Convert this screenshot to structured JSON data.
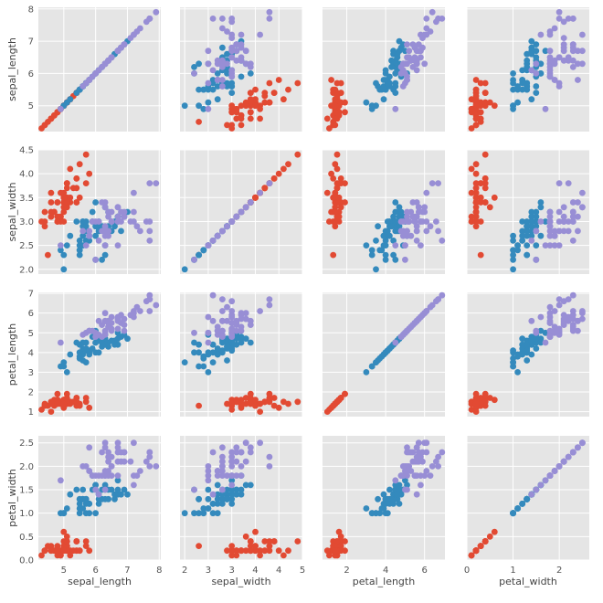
{
  "chart_data": {
    "type": "scatter",
    "style": "pairplot",
    "grid": true,
    "variables": [
      "sepal_length",
      "sepal_width",
      "petal_length",
      "petal_width"
    ],
    "groups": [
      {
        "color": "#E24A33"
      },
      {
        "color": "#348ABD"
      },
      {
        "color": "#988ED5"
      }
    ],
    "axes": {
      "sepal_length": {
        "range": [
          4.2,
          8.05
        ],
        "ticks": [
          5,
          6,
          7,
          8
        ]
      },
      "sepal_width": {
        "range": [
          1.9,
          4.5
        ],
        "ticks": [
          2.0,
          2.5,
          3.0,
          3.5,
          4.0,
          4.5
        ],
        "tick_labels": [
          "2.0",
          "2.5",
          "3.0",
          "3.5",
          "4.0",
          "4.5"
        ]
      },
      "petal_length": {
        "range": [
          0.75,
          7.05
        ],
        "ticks": [
          1,
          2,
          3,
          4,
          5,
          6,
          7
        ]
      },
      "petal_width": {
        "range": [
          0,
          2.65
        ],
        "ticks": [
          0.0,
          0.5,
          1.0,
          1.5,
          2.0,
          2.5
        ],
        "tick_labels": [
          "0.0",
          "0.5",
          "1.0",
          "1.5",
          "2.0",
          "2.5"
        ]
      }
    },
    "x_axis_ticks": {
      "petal_length": [
        2,
        4,
        6
      ],
      "petal_width": [
        0,
        1,
        2
      ]
    },
    "xlabels": [
      "sepal_length",
      "sepal_width",
      "petal_length",
      "petal_width"
    ],
    "ylabels": [
      "sepal_length",
      "sepal_width",
      "petal_length",
      "petal_width"
    ],
    "data": [
      [
        [
          5.1,
          3.5,
          1.4,
          0.2
        ],
        [
          4.9,
          3.0,
          1.4,
          0.2
        ],
        [
          4.7,
          3.2,
          1.3,
          0.2
        ],
        [
          4.6,
          3.1,
          1.5,
          0.2
        ],
        [
          5.0,
          3.6,
          1.4,
          0.2
        ],
        [
          5.4,
          3.9,
          1.7,
          0.4
        ],
        [
          4.6,
          3.4,
          1.4,
          0.3
        ],
        [
          5.0,
          3.4,
          1.5,
          0.2
        ],
        [
          4.4,
          2.9,
          1.4,
          0.2
        ],
        [
          4.9,
          3.1,
          1.5,
          0.1
        ],
        [
          5.4,
          3.7,
          1.5,
          0.2
        ],
        [
          4.8,
          3.4,
          1.6,
          0.2
        ],
        [
          4.8,
          3.0,
          1.4,
          0.1
        ],
        [
          4.3,
          3.0,
          1.1,
          0.1
        ],
        [
          5.8,
          4.0,
          1.2,
          0.2
        ],
        [
          5.7,
          4.4,
          1.5,
          0.4
        ],
        [
          5.4,
          3.9,
          1.3,
          0.4
        ],
        [
          5.1,
          3.5,
          1.4,
          0.3
        ],
        [
          5.7,
          3.8,
          1.7,
          0.3
        ],
        [
          5.1,
          3.8,
          1.5,
          0.3
        ],
        [
          5.4,
          3.4,
          1.7,
          0.2
        ],
        [
          5.1,
          3.7,
          1.5,
          0.4
        ],
        [
          4.6,
          3.6,
          1.0,
          0.2
        ],
        [
          5.1,
          3.3,
          1.7,
          0.5
        ],
        [
          4.8,
          3.4,
          1.9,
          0.2
        ],
        [
          5.0,
          3.0,
          1.6,
          0.2
        ],
        [
          5.0,
          3.4,
          1.6,
          0.4
        ],
        [
          5.2,
          3.5,
          1.5,
          0.2
        ],
        [
          5.2,
          3.4,
          1.4,
          0.2
        ],
        [
          4.7,
          3.2,
          1.6,
          0.2
        ],
        [
          4.8,
          3.1,
          1.6,
          0.2
        ],
        [
          5.4,
          3.4,
          1.5,
          0.4
        ],
        [
          5.2,
          4.1,
          1.5,
          0.1
        ],
        [
          5.5,
          4.2,
          1.4,
          0.2
        ],
        [
          4.9,
          3.1,
          1.5,
          0.2
        ],
        [
          5.0,
          3.2,
          1.2,
          0.2
        ],
        [
          5.5,
          3.5,
          1.3,
          0.2
        ],
        [
          4.9,
          3.6,
          1.4,
          0.1
        ],
        [
          4.4,
          3.0,
          1.3,
          0.2
        ],
        [
          5.1,
          3.4,
          1.5,
          0.2
        ],
        [
          5.0,
          3.5,
          1.3,
          0.3
        ],
        [
          4.5,
          2.3,
          1.3,
          0.3
        ],
        [
          4.4,
          3.2,
          1.3,
          0.2
        ],
        [
          5.0,
          3.5,
          1.6,
          0.6
        ],
        [
          5.1,
          3.8,
          1.9,
          0.4
        ],
        [
          4.8,
          3.0,
          1.4,
          0.3
        ],
        [
          5.1,
          3.8,
          1.6,
          0.2
        ],
        [
          4.6,
          3.2,
          1.4,
          0.2
        ],
        [
          5.3,
          3.7,
          1.5,
          0.2
        ],
        [
          5.0,
          3.3,
          1.4,
          0.2
        ]
      ],
      [
        [
          7.0,
          3.2,
          4.7,
          1.4
        ],
        [
          6.4,
          3.2,
          4.5,
          1.5
        ],
        [
          6.9,
          3.1,
          4.9,
          1.5
        ],
        [
          5.5,
          2.3,
          4.0,
          1.3
        ],
        [
          6.5,
          2.8,
          4.6,
          1.5
        ],
        [
          5.7,
          2.8,
          4.5,
          1.3
        ],
        [
          6.3,
          3.3,
          4.7,
          1.6
        ],
        [
          4.9,
          2.4,
          3.3,
          1.0
        ],
        [
          6.6,
          2.9,
          4.6,
          1.3
        ],
        [
          5.2,
          2.7,
          3.9,
          1.4
        ],
        [
          5.0,
          2.0,
          3.5,
          1.0
        ],
        [
          5.9,
          3.0,
          4.2,
          1.5
        ],
        [
          6.0,
          2.2,
          4.0,
          1.0
        ],
        [
          6.1,
          2.9,
          4.7,
          1.4
        ],
        [
          5.6,
          2.9,
          3.6,
          1.3
        ],
        [
          6.7,
          3.1,
          4.4,
          1.4
        ],
        [
          5.6,
          3.0,
          4.5,
          1.5
        ],
        [
          5.8,
          2.7,
          4.1,
          1.0
        ],
        [
          6.2,
          2.2,
          4.5,
          1.5
        ],
        [
          5.6,
          2.5,
          3.9,
          1.1
        ],
        [
          5.9,
          3.2,
          4.8,
          1.8
        ],
        [
          6.1,
          2.8,
          4.0,
          1.3
        ],
        [
          6.3,
          2.5,
          4.9,
          1.5
        ],
        [
          6.1,
          2.8,
          4.7,
          1.2
        ],
        [
          6.4,
          2.9,
          4.3,
          1.3
        ],
        [
          6.6,
          3.0,
          4.4,
          1.4
        ],
        [
          6.8,
          2.8,
          4.8,
          1.4
        ],
        [
          6.7,
          3.0,
          5.0,
          1.7
        ],
        [
          6.0,
          2.9,
          4.5,
          1.5
        ],
        [
          5.7,
          2.6,
          3.5,
          1.0
        ],
        [
          5.5,
          2.4,
          3.8,
          1.1
        ],
        [
          5.5,
          2.4,
          3.7,
          1.0
        ],
        [
          5.8,
          2.7,
          3.9,
          1.2
        ],
        [
          6.0,
          2.7,
          5.1,
          1.6
        ],
        [
          5.4,
          3.0,
          4.5,
          1.5
        ],
        [
          6.0,
          3.4,
          4.5,
          1.6
        ],
        [
          6.7,
          3.1,
          4.7,
          1.5
        ],
        [
          6.3,
          2.3,
          4.4,
          1.3
        ],
        [
          5.6,
          3.0,
          4.1,
          1.3
        ],
        [
          5.5,
          2.5,
          4.0,
          1.3
        ],
        [
          5.5,
          2.6,
          4.4,
          1.2
        ],
        [
          6.1,
          3.0,
          4.6,
          1.4
        ],
        [
          5.8,
          2.6,
          4.0,
          1.2
        ],
        [
          5.0,
          2.3,
          3.3,
          1.0
        ],
        [
          5.6,
          2.7,
          4.2,
          1.3
        ],
        [
          5.7,
          3.0,
          4.2,
          1.2
        ],
        [
          5.7,
          2.9,
          4.2,
          1.3
        ],
        [
          6.2,
          2.9,
          4.3,
          1.3
        ],
        [
          5.1,
          2.5,
          3.0,
          1.1
        ],
        [
          5.7,
          2.8,
          4.1,
          1.3
        ]
      ],
      [
        [
          6.3,
          3.3,
          6.0,
          2.5
        ],
        [
          5.8,
          2.7,
          5.1,
          1.9
        ],
        [
          7.1,
          3.0,
          5.9,
          2.1
        ],
        [
          6.3,
          2.9,
          5.6,
          1.8
        ],
        [
          6.5,
          3.0,
          5.8,
          2.2
        ],
        [
          7.6,
          3.0,
          6.6,
          2.1
        ],
        [
          4.9,
          2.5,
          4.5,
          1.7
        ],
        [
          7.3,
          2.9,
          6.3,
          1.8
        ],
        [
          6.7,
          2.5,
          5.8,
          1.8
        ],
        [
          7.2,
          3.6,
          6.1,
          2.5
        ],
        [
          6.5,
          3.2,
          5.1,
          2.0
        ],
        [
          6.4,
          2.7,
          5.3,
          1.9
        ],
        [
          6.8,
          3.0,
          5.5,
          2.1
        ],
        [
          5.7,
          2.5,
          5.0,
          2.0
        ],
        [
          5.8,
          2.8,
          5.1,
          2.4
        ],
        [
          6.4,
          3.2,
          5.3,
          2.3
        ],
        [
          6.5,
          3.0,
          5.5,
          1.8
        ],
        [
          7.7,
          3.8,
          6.7,
          2.2
        ],
        [
          7.7,
          2.6,
          6.9,
          2.3
        ],
        [
          6.0,
          2.2,
          5.0,
          1.5
        ],
        [
          6.9,
          3.2,
          5.7,
          2.3
        ],
        [
          5.6,
          2.8,
          4.9,
          2.0
        ],
        [
          7.7,
          2.8,
          6.7,
          2.0
        ],
        [
          6.3,
          2.7,
          4.9,
          1.8
        ],
        [
          6.7,
          3.3,
          5.7,
          2.1
        ],
        [
          7.2,
          3.2,
          6.0,
          1.8
        ],
        [
          6.2,
          2.8,
          4.8,
          1.8
        ],
        [
          6.1,
          3.0,
          4.9,
          1.8
        ],
        [
          6.4,
          2.8,
          5.6,
          2.1
        ],
        [
          7.2,
          3.0,
          5.8,
          1.6
        ],
        [
          7.4,
          2.8,
          6.1,
          1.9
        ],
        [
          7.9,
          3.8,
          6.4,
          2.0
        ],
        [
          6.4,
          2.8,
          5.6,
          2.2
        ],
        [
          6.3,
          2.8,
          5.1,
          1.5
        ],
        [
          6.1,
          2.6,
          5.6,
          1.4
        ],
        [
          7.7,
          3.0,
          6.1,
          2.3
        ],
        [
          6.3,
          3.4,
          5.6,
          2.4
        ],
        [
          6.4,
          3.1,
          5.5,
          1.8
        ],
        [
          6.0,
          3.0,
          4.8,
          1.8
        ],
        [
          6.9,
          3.1,
          5.4,
          2.1
        ],
        [
          6.7,
          3.1,
          5.6,
          2.4
        ],
        [
          6.9,
          3.1,
          5.1,
          2.3
        ],
        [
          5.8,
          2.7,
          5.1,
          1.9
        ],
        [
          6.8,
          3.2,
          5.9,
          2.3
        ],
        [
          6.7,
          3.3,
          5.7,
          2.5
        ],
        [
          6.7,
          3.0,
          5.2,
          2.3
        ],
        [
          6.3,
          2.5,
          5.0,
          1.9
        ],
        [
          6.5,
          3.0,
          5.2,
          2.0
        ],
        [
          6.2,
          3.4,
          5.4,
          2.3
        ],
        [
          5.9,
          3.0,
          5.1,
          1.8
        ]
      ]
    ]
  }
}
